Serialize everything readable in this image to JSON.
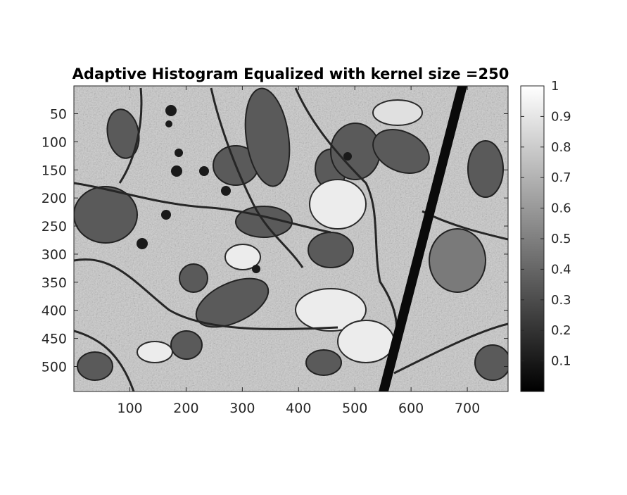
{
  "figure": {
    "title": "Adaptive Histogram Equalized with kernel size =250",
    "image_description_name": "electron-micrograph",
    "colormap": "gray",
    "x_axis": {
      "ticks": [
        "100",
        "200",
        "300",
        "400",
        "500",
        "600",
        "700"
      ],
      "range": [
        0.5,
        772.5
      ]
    },
    "y_axis": {
      "ticks": [
        "50",
        "100",
        "150",
        "200",
        "250",
        "300",
        "350",
        "400",
        "450",
        "500"
      ],
      "range": [
        0.5,
        544.5
      ]
    },
    "colorbar": {
      "ticks": [
        "0.1",
        "0.2",
        "0.3",
        "0.4",
        "0.5",
        "0.6",
        "0.7",
        "0.8",
        "0.9",
        "1"
      ],
      "range": [
        0,
        1
      ]
    }
  }
}
